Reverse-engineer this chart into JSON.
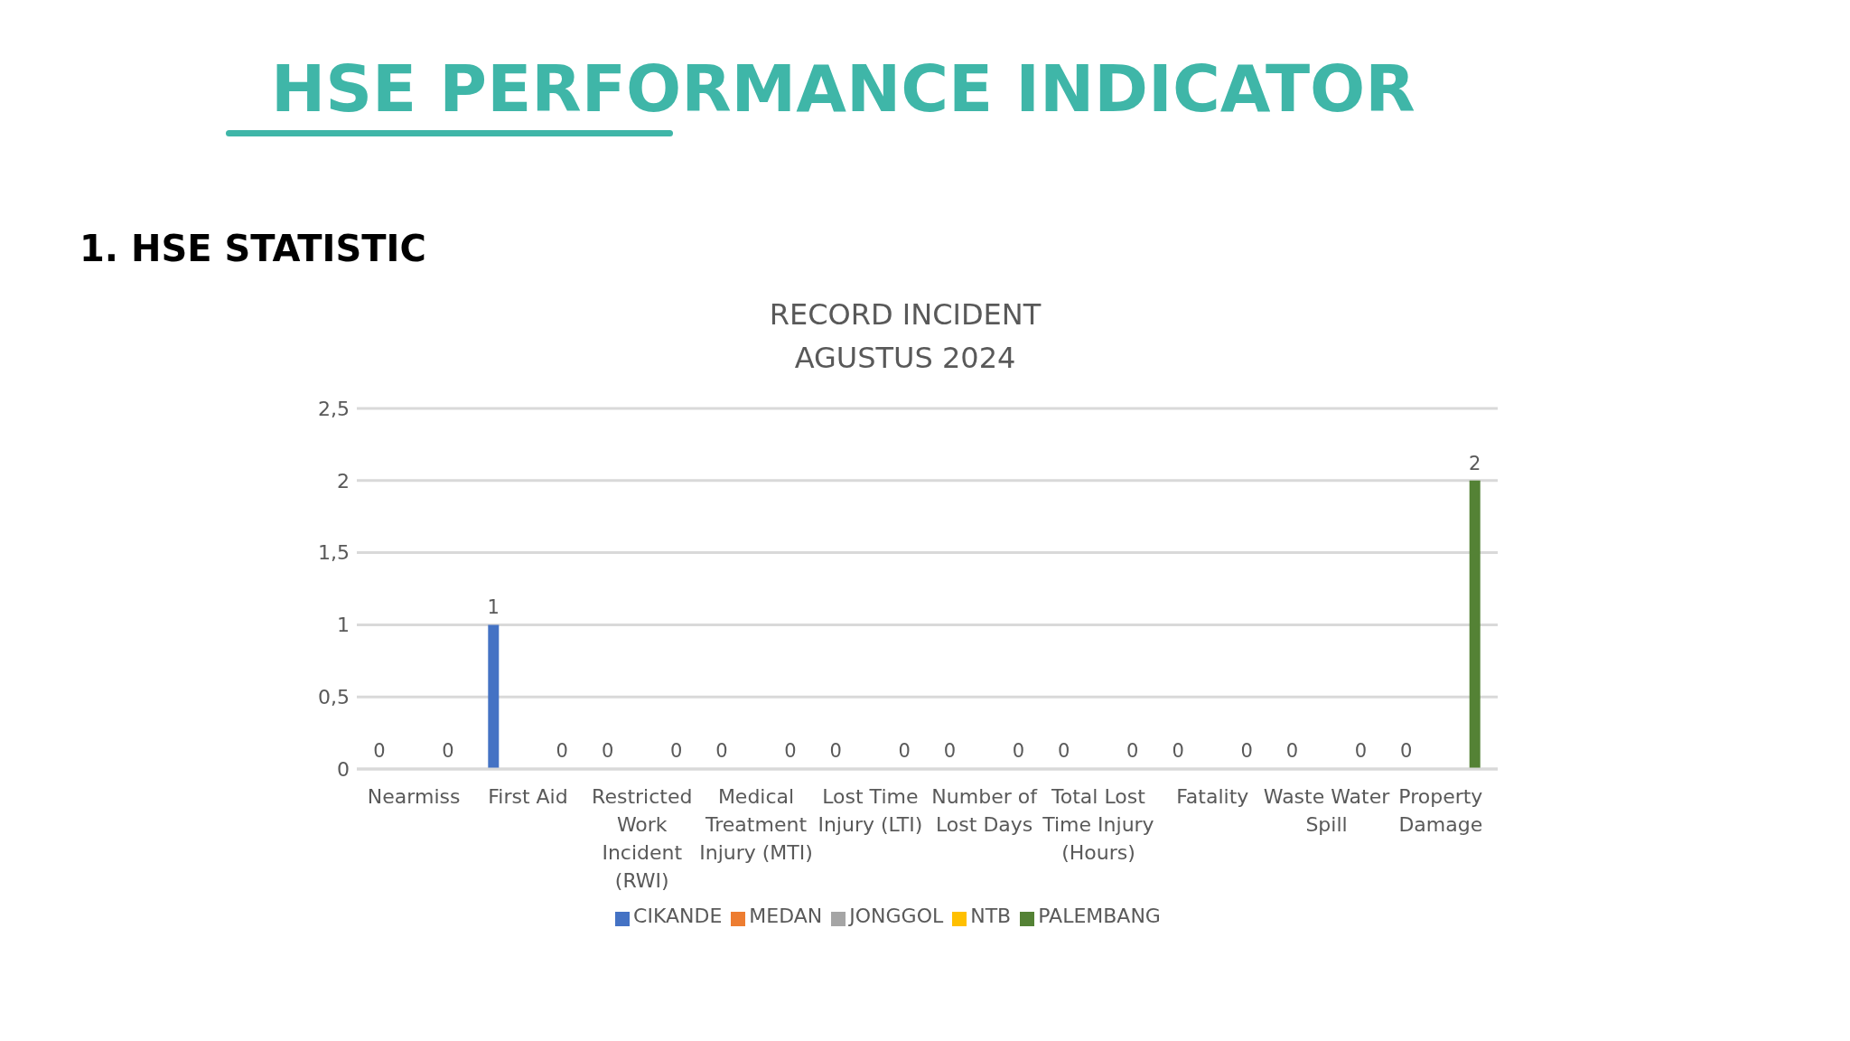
{
  "chart_data": {
    "type": "bar",
    "title": "HSE PERFORMANCE INDICATOR",
    "subtitle": "1. HSE STATISTIC",
    "annotations": [
      "RECORD INCIDENT",
      "AGUSTUS 2024"
    ],
    "categories": [
      "Nearmiss",
      "First Aid",
      "Restricted Work Incident (RWI)",
      "Medical Treatment Injury (MTI)",
      "Lost Time Injury (LTI)",
      "Number of Lost Days",
      "Total Lost Time Injury (Hours)",
      "Fatality",
      "Waste Water Spill",
      "Property Damage"
    ],
    "series": [
      {
        "name": "CIKANDE",
        "color": "#4472c4",
        "values": [
          0,
          1,
          0,
          0,
          0,
          0,
          0,
          0,
          0,
          0
        ]
      },
      {
        "name": "MEDAN",
        "color": "#ed7d31",
        "values": [
          null,
          null,
          null,
          null,
          null,
          null,
          null,
          null,
          null,
          null
        ]
      },
      {
        "name": "JONGGOL",
        "color": "#a5a5a5",
        "values": [
          null,
          null,
          null,
          null,
          null,
          null,
          null,
          null,
          null,
          null
        ]
      },
      {
        "name": "NTB",
        "color": "#ffc000",
        "values": [
          null,
          null,
          null,
          null,
          null,
          null,
          null,
          null,
          null,
          null
        ]
      },
      {
        "name": "PALEMBANG",
        "color": "#548235",
        "values": [
          0,
          0,
          0,
          0,
          0,
          0,
          0,
          0,
          0,
          2
        ]
      }
    ],
    "ylim": [
      0,
      2.5
    ],
    "yticks": [
      0,
      {
        "value": 0.5,
        "label": "0,5"
      },
      1,
      {
        "value": 1.5,
        "label": "1,5"
      },
      2,
      {
        "value": 2.5,
        "label": "2,5"
      }
    ],
    "grid": "y",
    "legend": "bottom",
    "data_labels": true
  }
}
